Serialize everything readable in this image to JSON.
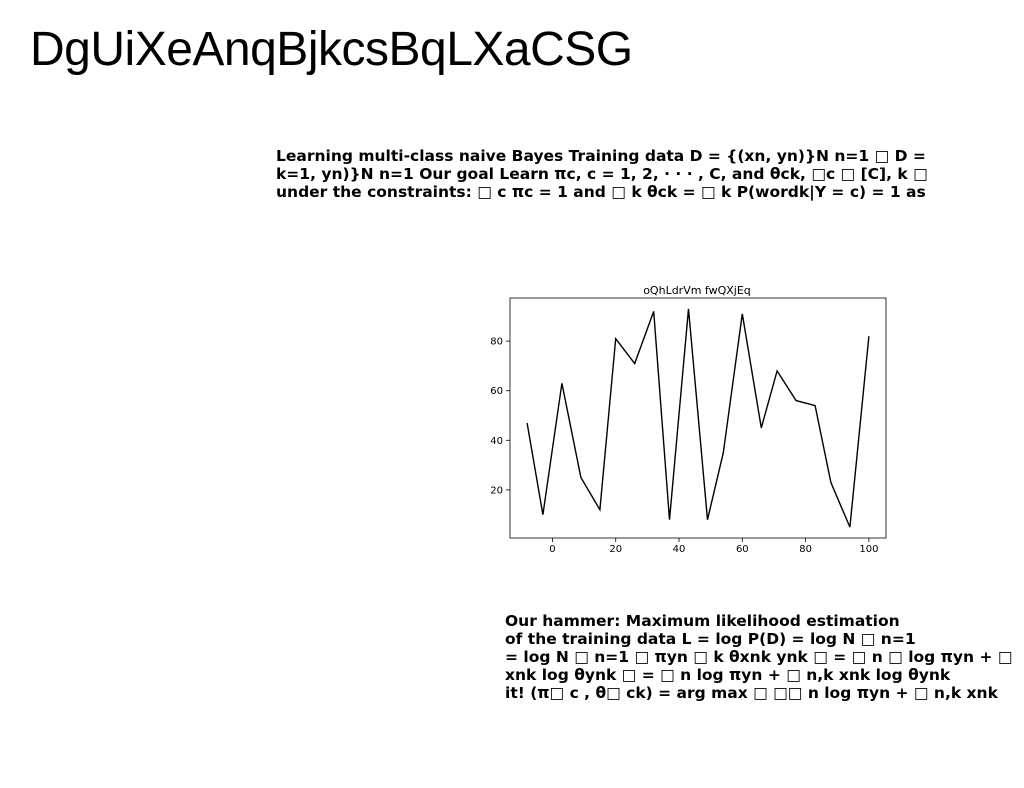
{
  "title": "DgUiXeAnqBjkcsBqLXaCSG",
  "paragraph1": {
    "lines": [
      "Learning multi-class naive Bayes Training data D = {(xn, yn)}N n=1 □ D =",
      "k=1, yn)}N n=1 Our goal Learn πc, c = 1, 2, · · · , C, and θck, □c □ [C], k □",
      "under the constraints: □ c πc = 1 and □ k θck = □ k P(wordk|Y = c) = 1 as"
    ]
  },
  "paragraph2": {
    "lines": [
      "Our hammer: Maximum likelihood estimation",
      "of the training data L = log P(D) = log N □ n=1",
      "= log N □ n=1 □ πyn □ k θxnk ynk □ = □ n □ log πyn + □",
      "xnk log θynk □ = □ n log πyn + □ n,k xnk log θynk",
      "it! (π□ c , θ□ ck) = arg max □ □□ n log πyn + □ n,k xnk"
    ]
  },
  "chart_data": {
    "type": "line",
    "title": "oQhLdrVm fwQXjEq",
    "xlabel": "",
    "ylabel": "",
    "x": [
      -8,
      -3,
      3,
      9,
      15,
      20,
      26,
      32,
      37,
      43,
      49,
      54,
      60,
      66,
      71,
      77,
      83,
      88,
      94,
      100
    ],
    "series": [
      {
        "values": [
          47,
          10,
          63,
          25,
          12,
          81,
          71,
          92,
          8,
          93,
          8,
          35,
          91,
          45,
          68,
          56,
          54,
          23,
          5,
          82
        ]
      }
    ],
    "xlim": [
      -13.4,
      105.4
    ],
    "ylim": [
      0.6,
      97.4
    ],
    "xticks": [
      0,
      20,
      40,
      60,
      80,
      100
    ],
    "yticks": [
      20,
      40,
      60,
      80
    ],
    "grid": false,
    "line_color": "#000000"
  }
}
